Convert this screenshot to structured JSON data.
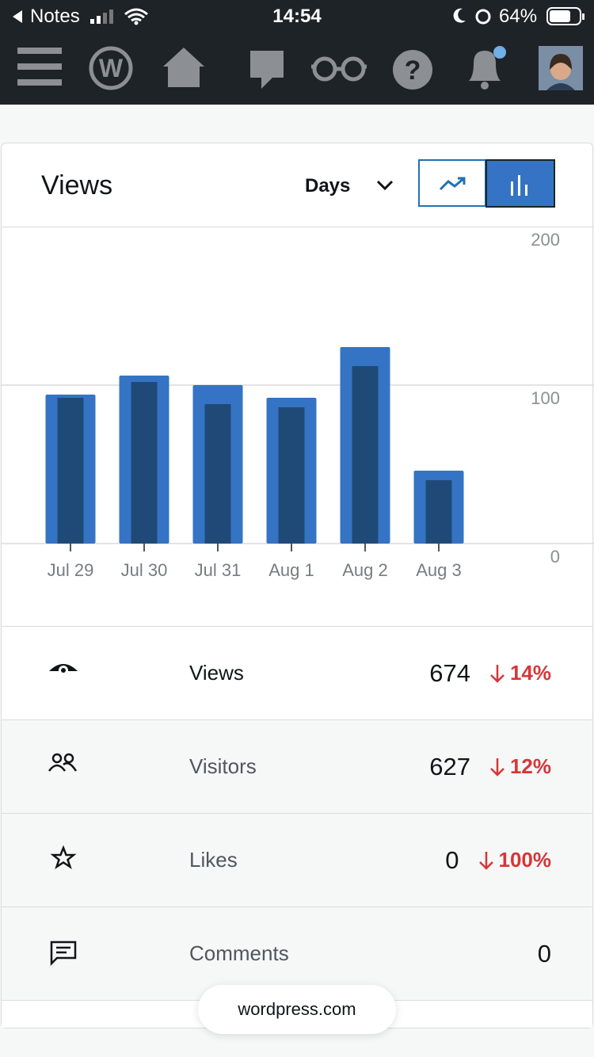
{
  "status_bar": {
    "back_app": "Notes",
    "time": "14:54",
    "battery": "64%"
  },
  "card": {
    "title": "Views",
    "period": "Days"
  },
  "chart_data": {
    "type": "bar",
    "categories": [
      "Jul 29",
      "Jul 30",
      "Jul 31",
      "Aug 1",
      "Aug 2",
      "Aug 3"
    ],
    "series": [
      {
        "color": "#3574c4",
        "values": [
          94,
          106,
          100,
          92,
          124,
          46
        ]
      },
      {
        "color": "#1f4a78",
        "values": [
          92,
          102,
          88,
          86,
          112,
          40
        ]
      }
    ],
    "ylim": [
      0,
      200
    ],
    "yticks": [
      0,
      100,
      200
    ],
    "grid": true
  },
  "stats": [
    {
      "label": "Views",
      "value": 674,
      "change": "14%"
    },
    {
      "label": "Visitors",
      "value": 627,
      "change": "12%"
    },
    {
      "label": "Likes",
      "value": 0,
      "change": "100%"
    },
    {
      "label": "Comments",
      "value": 0
    }
  ],
  "footer": {
    "domain": "wordpress.com"
  }
}
